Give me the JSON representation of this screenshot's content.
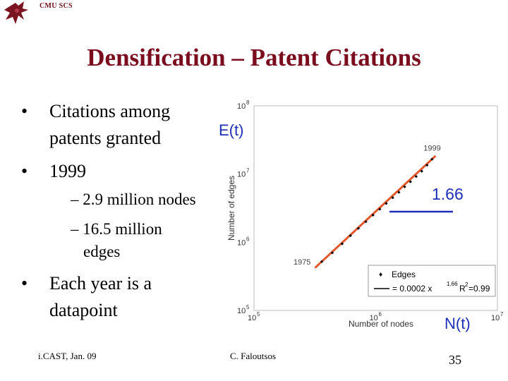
{
  "header": {
    "label": "CMU SCS"
  },
  "title": "Densification – Patent Citations",
  "bullets": {
    "b1_line1": "Citations among",
    "b1_line2": "patents granted",
    "b2": "1999",
    "sub1": "– 2.9 million nodes",
    "sub2_line1": "– 16.5 million",
    "sub2_line2": "edges",
    "b3_line1": "Each year is a",
    "b3_line2": "datapoint"
  },
  "annotations": {
    "e_of_t": "E(t)",
    "slope": "1.66",
    "n_of_t": "N(t)"
  },
  "footer": {
    "left": "i.CAST, Jan. 09",
    "center": "C. Faloutsos",
    "page": "35"
  },
  "colors": {
    "title": "#7a0e1f",
    "fit_line": "#e2572a",
    "annotation": "#1f2fb8"
  },
  "chart_data": {
    "type": "scatter",
    "xscale": "log",
    "yscale": "log",
    "xlim": [
      100000,
      10000000
    ],
    "ylim": [
      100000,
      100000000
    ],
    "xlabel": "Number of nodes",
    "ylabel": "Number of edges",
    "x_ticks": [
      "10",
      "10",
      "10"
    ],
    "x_tick_exponents": [
      "5",
      "6",
      "7"
    ],
    "y_ticks": [
      "10",
      "10",
      "10",
      "10"
    ],
    "y_tick_exponents": [
      "5",
      "6",
      "7",
      "8"
    ],
    "point_labels": [
      "1975",
      "1999"
    ],
    "series": [
      {
        "name": "Edges",
        "x": [
          360000,
          440000,
          530000,
          620000,
          720000,
          830000,
          950000,
          1080000,
          1220000,
          1380000,
          1550000,
          1730000,
          1930000,
          2150000,
          2390000,
          2640000,
          2900000
        ],
        "y": [
          520000,
          700000,
          950000,
          1250000,
          1600000,
          2000000,
          2500000,
          3050000,
          3700000,
          4500000,
          5400000,
          6500000,
          7700000,
          9200000,
          11000000,
          13500000,
          16500000
        ]
      }
    ],
    "legend": {
      "position": "bottom-right",
      "entries": [
        "Edges",
        "= 0.0002 x",
        "R",
        "=0.99"
      ],
      "fit_exponent": "1.66",
      "r2_exponent": "2"
    }
  }
}
